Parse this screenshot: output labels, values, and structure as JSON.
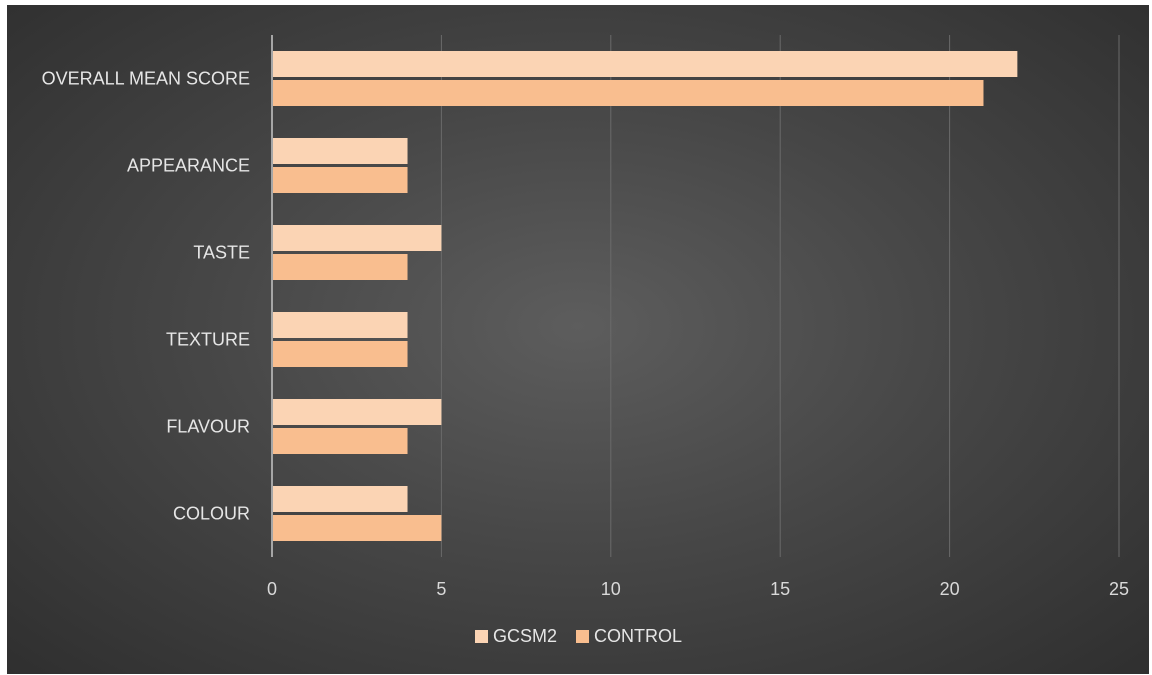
{
  "chart_data": {
    "type": "bar",
    "orientation": "horizontal",
    "categories": [
      "OVERALL MEAN SCORE",
      "APPEARANCE",
      "TASTE",
      "TEXTURE",
      "FLAVOUR",
      "COLOUR"
    ],
    "series": [
      {
        "name": "GCSM2",
        "values": [
          22,
          4,
          5,
          4,
          5,
          4
        ],
        "color": "#fbd4b4"
      },
      {
        "name": "CONTROL",
        "values": [
          21,
          4,
          4,
          4,
          4,
          5
        ],
        "color": "#f9be8f"
      }
    ],
    "xlim": [
      0,
      25
    ],
    "xticks": [
      "0",
      "5",
      "10",
      "15",
      "20",
      "25"
    ],
    "grid": "vertical",
    "legend_position": "bottom",
    "title": "",
    "xlabel": "",
    "ylabel": ""
  }
}
